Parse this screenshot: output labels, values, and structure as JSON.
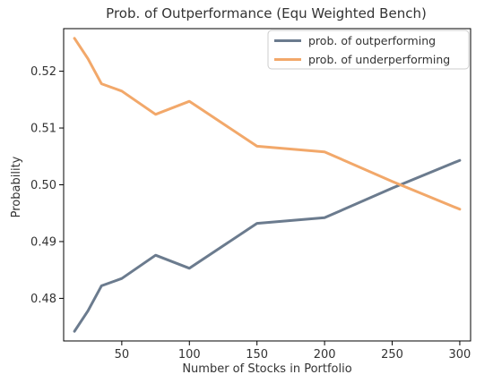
{
  "chart_data": {
    "type": "line",
    "title": "Prob. of Outperformance (Equ Weighted Bench)",
    "xlabel": "Number of Stocks in Portfolio",
    "ylabel": "Probability",
    "xlim": [
      7,
      308
    ],
    "ylim": [
      0.4725,
      0.5275
    ],
    "xticks": [
      50,
      100,
      150,
      200,
      250,
      300
    ],
    "yticks": [
      0.48,
      0.49,
      0.5,
      0.51,
      0.52
    ],
    "ytick_labels": [
      "0.48",
      "0.49",
      "0.50",
      "0.51",
      "0.52"
    ],
    "grid": false,
    "legend_position": "upper-right",
    "x": [
      15,
      25,
      35,
      50,
      75,
      100,
      150,
      200,
      250,
      300
    ],
    "series": [
      {
        "name": "prob. of outperforming",
        "color": "#6b7b8e",
        "values": [
          0.4742,
          0.4778,
          0.4822,
          0.4835,
          0.4876,
          0.4853,
          0.4932,
          0.4942,
          0.4994,
          0.5043
        ]
      },
      {
        "name": "prob. of underperforming",
        "color": "#f2a86a",
        "values": [
          0.5258,
          0.5222,
          0.5178,
          0.5165,
          0.5124,
          0.5147,
          0.5068,
          0.5058,
          0.5006,
          0.4957
        ]
      }
    ]
  }
}
